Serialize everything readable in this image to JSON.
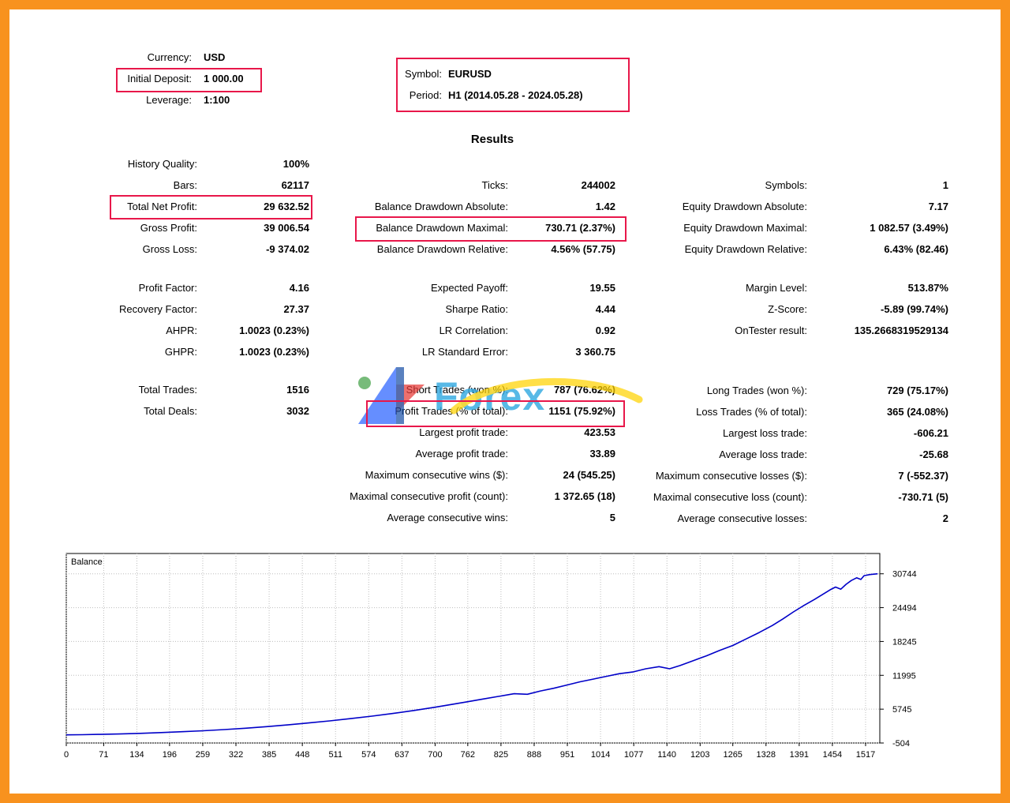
{
  "colors": {
    "frame_orange": "#f8921e",
    "highlight_red": "#e8174a",
    "balance_line_blue": "#0000c8",
    "watermark_blue": "#2fa8e1",
    "watermark_yellow": "#ffd200"
  },
  "header": {
    "currency_label": "Currency:",
    "currency_value": "USD",
    "deposit_label": "Initial Deposit:",
    "deposit_value": "1 000.00",
    "leverage_label": "Leverage:",
    "leverage_value": "1:100",
    "symbol_label": "Symbol:",
    "symbol_value": "EURUSD",
    "period_label": "Period:",
    "period_value": "H1 (2014.05.28 - 2024.05.28)"
  },
  "results_title": "Results",
  "stats": {
    "left": [
      {
        "label": "History Quality:",
        "value": "100%"
      },
      {
        "label": "Bars:",
        "value": "62117"
      },
      {
        "label": "Total Net Profit:",
        "value": "29 632.52"
      },
      {
        "label": "Gross Profit:",
        "value": "39 006.54"
      },
      {
        "label": "Gross Loss:",
        "value": "-9 374.02"
      },
      {
        "gap": true
      },
      {
        "label": "Profit Factor:",
        "value": "4.16"
      },
      {
        "label": "Recovery Factor:",
        "value": "27.37"
      },
      {
        "label": "AHPR:",
        "value": "1.0023 (0.23%)"
      },
      {
        "label": "GHPR:",
        "value": "1.0023 (0.23%)"
      },
      {
        "gap": true
      },
      {
        "label": "Total Trades:",
        "value": "1516"
      },
      {
        "label": "Total Deals:",
        "value": "3032"
      }
    ],
    "middle": [
      {
        "label": "Ticks:",
        "value": "244002"
      },
      {
        "label": "Balance Drawdown Absolute:",
        "value": "1.42"
      },
      {
        "label": "Balance Drawdown Maximal:",
        "value": "730.71 (2.37%)"
      },
      {
        "label": "Balance Drawdown Relative:",
        "value": "4.56% (57.75)"
      },
      {
        "gap": true
      },
      {
        "label": "Expected Payoff:",
        "value": "19.55"
      },
      {
        "label": "Sharpe Ratio:",
        "value": "4.44"
      },
      {
        "label": "LR Correlation:",
        "value": "0.92"
      },
      {
        "label": "LR Standard Error:",
        "value": "3 360.75"
      },
      {
        "gap": true
      },
      {
        "label": "Short Trades (won %):",
        "value": "787 (76.62%)"
      },
      {
        "label": "Profit Trades (% of total):",
        "value": "1151 (75.92%)"
      },
      {
        "label": "Largest profit trade:",
        "value": "423.53"
      },
      {
        "label": "Average profit trade:",
        "value": "33.89"
      },
      {
        "label": "Maximum consecutive wins ($):",
        "value": "24 (545.25)"
      },
      {
        "label": "Maximal consecutive profit (count):",
        "value": "1 372.65 (18)"
      },
      {
        "label": "Average consecutive wins:",
        "value": "5"
      }
    ],
    "right": [
      {
        "label": "Symbols:",
        "value": "1"
      },
      {
        "label": "Equity Drawdown Absolute:",
        "value": "7.17"
      },
      {
        "label": "Equity Drawdown Maximal:",
        "value": "1 082.57 (3.49%)"
      },
      {
        "label": "Equity Drawdown Relative:",
        "value": "6.43% (82.46)"
      },
      {
        "gap": true
      },
      {
        "label": "Margin Level:",
        "value": "513.87%"
      },
      {
        "label": "Z-Score:",
        "value": "-5.89 (99.74%)"
      },
      {
        "label": "OnTester result:",
        "value": "135.2668319529134"
      },
      {
        "gap": true,
        "h": 49
      },
      {
        "label": "Long Trades (won %):",
        "value": "729 (75.17%)"
      },
      {
        "label": "Loss Trades (% of total):",
        "value": "365 (24.08%)"
      },
      {
        "label": "Largest loss trade:",
        "value": "-606.21"
      },
      {
        "label": "Average loss trade:",
        "value": "-25.68"
      },
      {
        "label": "Maximum consecutive losses ($):",
        "value": "7 (-552.37)"
      },
      {
        "label": "Maximal consecutive loss (count):",
        "value": "-730.71 (5)"
      },
      {
        "label": "Average consecutive losses:",
        "value": "2"
      }
    ]
  },
  "watermark": {
    "text": "Forex"
  },
  "chart_data": {
    "type": "line",
    "title": "Balance",
    "xlabel": "",
    "ylabel": "",
    "grid": true,
    "legend_position": "none",
    "ylabel_side": "right",
    "x_range": [
      0,
      1544
    ],
    "y_range": [
      -504,
      34494
    ],
    "x_ticks": [
      0,
      71,
      134,
      196,
      259,
      322,
      385,
      448,
      511,
      574,
      637,
      700,
      762,
      825,
      888,
      951,
      1014,
      1077,
      1140,
      1203,
      1265,
      1328,
      1391,
      1454,
      1517
    ],
    "y_ticks": [
      -504,
      5745,
      11995,
      18245,
      24494,
      30744
    ],
    "series": [
      {
        "name": "Balance",
        "color": "#0000c8",
        "points": [
          [
            0,
            1000
          ],
          [
            30,
            1030
          ],
          [
            60,
            1080
          ],
          [
            100,
            1160
          ],
          [
            140,
            1280
          ],
          [
            180,
            1420
          ],
          [
            220,
            1580
          ],
          [
            260,
            1760
          ],
          [
            300,
            1980
          ],
          [
            340,
            2230
          ],
          [
            380,
            2520
          ],
          [
            420,
            2840
          ],
          [
            460,
            3200
          ],
          [
            500,
            3580
          ],
          [
            540,
            4000
          ],
          [
            580,
            4450
          ],
          [
            620,
            4950
          ],
          [
            660,
            5500
          ],
          [
            700,
            6100
          ],
          [
            730,
            6600
          ],
          [
            760,
            7100
          ],
          [
            790,
            7600
          ],
          [
            820,
            8100
          ],
          [
            850,
            8600
          ],
          [
            875,
            8500
          ],
          [
            900,
            9100
          ],
          [
            925,
            9600
          ],
          [
            950,
            10200
          ],
          [
            975,
            10800
          ],
          [
            1000,
            11300
          ],
          [
            1025,
            11800
          ],
          [
            1050,
            12300
          ],
          [
            1075,
            12600
          ],
          [
            1100,
            13200
          ],
          [
            1125,
            13600
          ],
          [
            1145,
            13200
          ],
          [
            1165,
            13800
          ],
          [
            1190,
            14700
          ],
          [
            1215,
            15600
          ],
          [
            1240,
            16600
          ],
          [
            1265,
            17500
          ],
          [
            1290,
            18700
          ],
          [
            1315,
            19900
          ],
          [
            1340,
            21200
          ],
          [
            1360,
            22400
          ],
          [
            1380,
            23700
          ],
          [
            1400,
            24900
          ],
          [
            1420,
            26000
          ],
          [
            1435,
            26900
          ],
          [
            1450,
            27800
          ],
          [
            1460,
            28300
          ],
          [
            1470,
            27900
          ],
          [
            1480,
            28800
          ],
          [
            1490,
            29500
          ],
          [
            1500,
            30000
          ],
          [
            1508,
            29700
          ],
          [
            1514,
            30400
          ],
          [
            1525,
            30600
          ],
          [
            1540,
            30744
          ]
        ]
      }
    ]
  }
}
